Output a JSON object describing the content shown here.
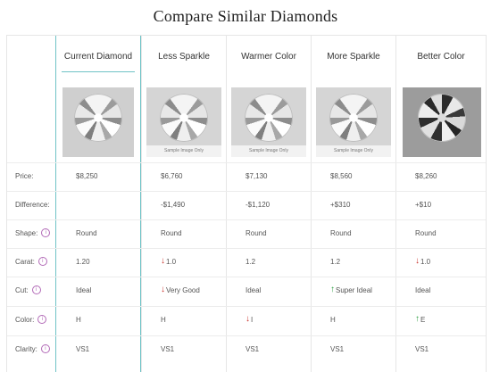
{
  "page": {
    "title": "Compare Similar Diamonds"
  },
  "columns": [
    {
      "label": "Current Diamond",
      "image": "diamond-photo",
      "caption": ""
    },
    {
      "label": "Less Sparkle",
      "image": "diamond-photo",
      "caption": "Sample Image Only"
    },
    {
      "label": "Warmer Color",
      "image": "diamond-photo",
      "caption": "Sample Image Only"
    },
    {
      "label": "More Sparkle",
      "image": "diamond-photo",
      "caption": "Sample Image Only"
    },
    {
      "label": "Better Color",
      "image": "diamond-photo-dark",
      "caption": ""
    }
  ],
  "rows": [
    {
      "label": "Price:",
      "info_icon": false,
      "values": [
        "$8,250",
        "$6,760",
        "$7,130",
        "$8,560",
        "$8,260"
      ],
      "indicators": [
        "",
        "",
        "",
        "",
        ""
      ]
    },
    {
      "label": "Difference:",
      "info_icon": false,
      "values": [
        "",
        "-$1,490",
        "-$1,120",
        "+$310",
        "+$10"
      ],
      "indicators": [
        "",
        "",
        "",
        "",
        ""
      ]
    },
    {
      "label": "Shape:",
      "info_icon": true,
      "values": [
        "Round",
        "Round",
        "Round",
        "Round",
        "Round"
      ],
      "indicators": [
        "",
        "",
        "",
        "",
        ""
      ]
    },
    {
      "label": "Carat:",
      "info_icon": true,
      "values": [
        "1.20",
        "1.0",
        "1.2",
        "1.2",
        "1.0"
      ],
      "indicators": [
        "",
        "down",
        "",
        "",
        "down"
      ]
    },
    {
      "label": "Cut:",
      "info_icon": true,
      "values": [
        "Ideal",
        "Very Good",
        "Ideal",
        "Super Ideal",
        "Ideal"
      ],
      "indicators": [
        "",
        "down",
        "",
        "up",
        ""
      ]
    },
    {
      "label": "Color:",
      "info_icon": true,
      "values": [
        "H",
        "H",
        "I",
        "H",
        "E"
      ],
      "indicators": [
        "",
        "",
        "down",
        "",
        "up"
      ]
    },
    {
      "label": "Clarity:",
      "info_icon": true,
      "values": [
        "VS1",
        "VS1",
        "VS1",
        "VS1",
        "VS1"
      ],
      "indicators": [
        "",
        "",
        "",
        "",
        ""
      ]
    }
  ],
  "icons": {
    "info": "info-circle-icon",
    "down": "arrow-down-icon",
    "up": "arrow-up-icon"
  },
  "colors": {
    "accent": "#6fc3c6",
    "down_arrow": "#c9322b",
    "up_arrow": "#2ea043",
    "info_icon": "#b26ab7"
  },
  "glyphs": {
    "down": "↓",
    "up": "↑",
    "info": "i"
  }
}
